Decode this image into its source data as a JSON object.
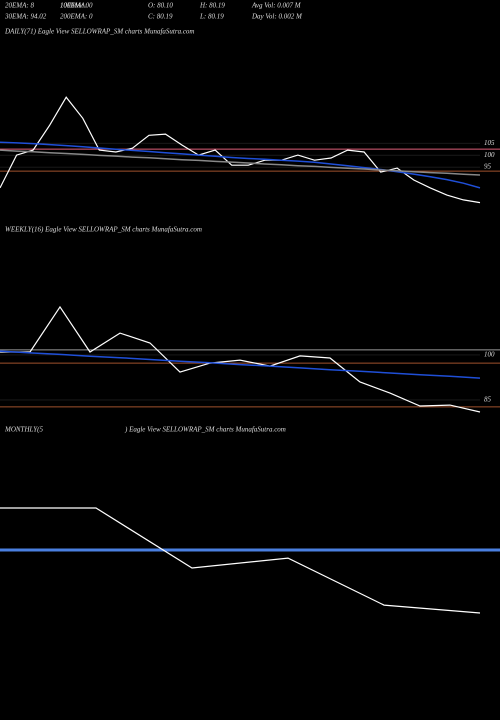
{
  "header": [
    "20EMA: 8",
    "10EMA: 0",
    "100EMA: 0",
    "O: 80.10",
    "H: 80.19",
    "Avg Vol: 0.007  M",
    "30EMA: 94.02",
    "200EMA: 0",
    "C: 80.19",
    "L: 80.19",
    "Day Vol: 0.002  M"
  ],
  "chart_data": [
    {
      "type": "line",
      "title": "DAILY(71) Eagle  View  SELLOWRAP_SM charts MunafaSutra.com",
      "ylim": [
        75,
        146
      ],
      "yticks": [
        105,
        100,
        95
      ],
      "hlines": [
        {
          "value": 102.5,
          "color": "#e0607a"
        },
        {
          "value": 93.3,
          "color": "#a0522d"
        }
      ],
      "series": [
        {
          "color": "#ffffff",
          "values": [
            86.3,
            100,
            102.1,
            112.5,
            124.2,
            115.4,
            102.1,
            101.3,
            102.9,
            108.3,
            108.8,
            104.2,
            100,
            102.1,
            95.8,
            95.8,
            97.9,
            97.9,
            100,
            97.9,
            98.8,
            102.1,
            101.3,
            92.9,
            94.6,
            89.6,
            86.3,
            83.3,
            81.3,
            80.19
          ]
        },
        {
          "color": "#1f4fd8",
          "values": [
            105.4,
            105.1,
            104.8,
            104.4,
            104,
            103.5,
            103,
            102.5,
            102,
            101.5,
            101,
            100.5,
            100,
            99.5,
            99,
            98.6,
            98.3,
            97.9,
            97.5,
            97,
            96.3,
            95.6,
            94.8,
            94,
            93.1,
            92.1,
            91,
            89.8,
            88.3,
            86.3
          ]
        },
        {
          "color": "#888888",
          "values": [
            102.1,
            101.7,
            101.4,
            101,
            100.7,
            100.3,
            99.9,
            99.6,
            99.2,
            98.9,
            98.5,
            98.1,
            97.8,
            97.4,
            97.1,
            96.7,
            96.3,
            96,
            95.6,
            95.3,
            94.9,
            94.5,
            94.2,
            93.8,
            93.5,
            93.1,
            92.7,
            92.4,
            92,
            91.7
          ]
        }
      ]
    },
    {
      "type": "line",
      "title": "WEEKLY(16) Eagle  View  SELLOWRAP_SM charts MunafaSutra.com",
      "ylim": [
        80,
        138.3
      ],
      "yticks": [
        100,
        85
      ],
      "hlines": [
        {
          "value": 101.7,
          "color": "#999999"
        },
        {
          "value": 97.3,
          "color": "#a0522d"
        },
        {
          "value": 82.7,
          "color": "#a0522d"
        }
      ],
      "series": [
        {
          "color": "#ffffff",
          "values": [
            101,
            101,
            116,
            101,
            107.3,
            104,
            94.3,
            97.3,
            98.3,
            96.3,
            99.7,
            99,
            91,
            87.3,
            83,
            83.3,
            81
          ]
        },
        {
          "color": "#1f4fd8",
          "values": [
            101.3,
            100.7,
            100.2,
            99.6,
            99.1,
            98.5,
            97.9,
            97.4,
            96.8,
            96.3,
            95.7,
            95.1,
            94.6,
            94,
            93.4,
            92.9,
            92.3
          ]
        }
      ]
    },
    {
      "type": "line",
      "title": "MONTHLY(5",
      "subtitle": ") Eagle  View  SELLOWRAP_SM charts MunafaSutra.com",
      "ylim": [
        0,
        100
      ],
      "hlines": [
        {
          "value": 38.9,
          "color": "#4a7fe0"
        }
      ],
      "series": [
        {
          "color": "#ffffff",
          "values": [
            62.2,
            62.2,
            28.9,
            34.4,
            8.3,
            3.9
          ]
        }
      ]
    }
  ]
}
